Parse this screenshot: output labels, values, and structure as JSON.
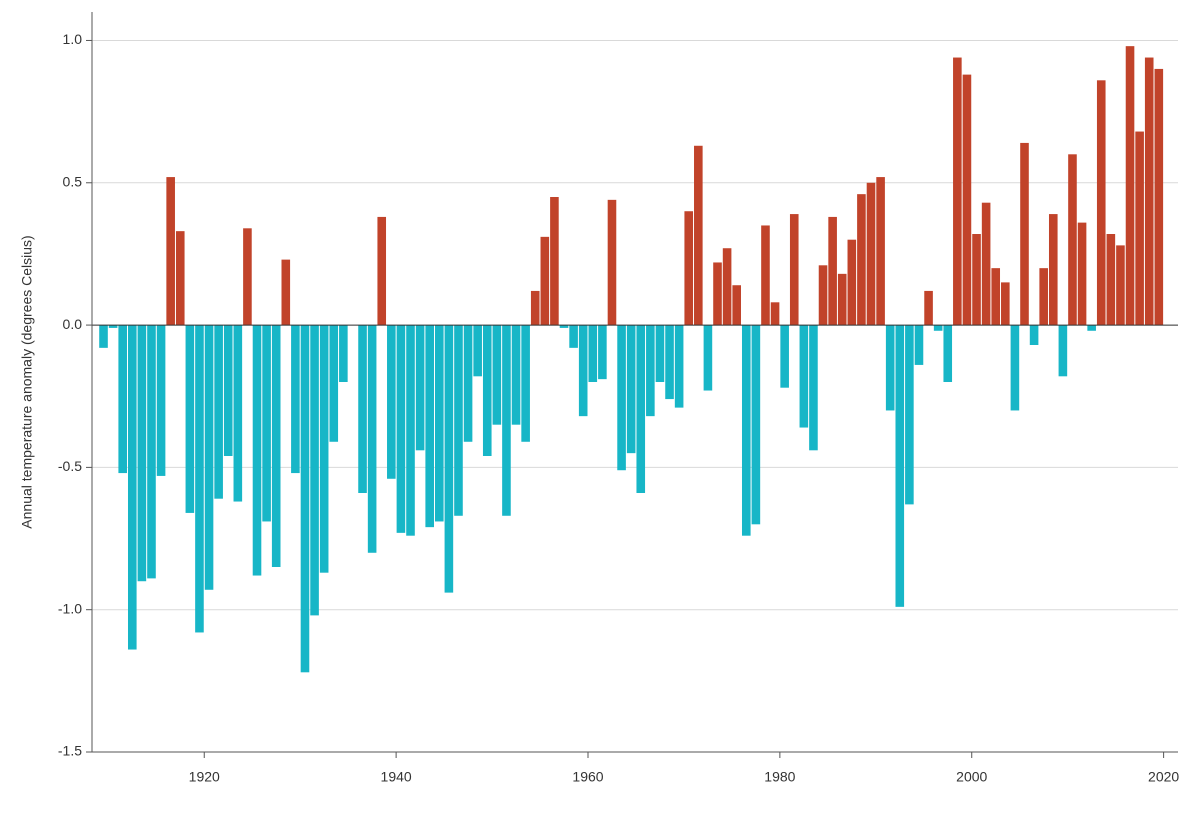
{
  "chart_data": {
    "type": "bar",
    "y_label": "Annual temperature anomaly (degrees Celsius)",
    "x": [
      1909,
      1910,
      1911,
      1912,
      1913,
      1914,
      1915,
      1916,
      1917,
      1918,
      1919,
      1920,
      1921,
      1922,
      1923,
      1924,
      1925,
      1926,
      1927,
      1928,
      1929,
      1930,
      1931,
      1932,
      1933,
      1934,
      1935,
      1936,
      1937,
      1938,
      1939,
      1940,
      1941,
      1942,
      1943,
      1944,
      1945,
      1946,
      1947,
      1948,
      1949,
      1950,
      1951,
      1952,
      1953,
      1954,
      1955,
      1956,
      1957,
      1958,
      1959,
      1960,
      1961,
      1962,
      1963,
      1964,
      1965,
      1966,
      1967,
      1968,
      1969,
      1970,
      1971,
      1972,
      1973,
      1974,
      1975,
      1976,
      1977,
      1978,
      1979,
      1980,
      1981,
      1982,
      1983,
      1984,
      1985,
      1986,
      1987,
      1988,
      1989,
      1990,
      1991,
      1992,
      1993,
      1994,
      1995,
      1996,
      1997,
      1998,
      1999,
      2000,
      2001,
      2002,
      2003,
      2004,
      2005,
      2006,
      2007,
      2008,
      2009,
      2010,
      2011,
      2012,
      2013,
      2014,
      2015,
      2016,
      2017,
      2018,
      2019
    ],
    "values": [
      -0.08,
      -0.01,
      -0.52,
      -1.14,
      -0.9,
      -0.89,
      -0.53,
      0.52,
      0.33,
      -0.66,
      -1.08,
      -0.93,
      -0.61,
      -0.46,
      -0.62,
      0.34,
      -0.88,
      -0.69,
      -0.85,
      0.23,
      -0.52,
      -1.22,
      -1.02,
      -0.87,
      -0.41,
      -0.2,
      0,
      -0.59,
      -0.8,
      0.38,
      -0.54,
      -0.73,
      -0.74,
      -0.44,
      -0.71,
      -0.69,
      -0.94,
      -0.67,
      -0.41,
      -0.18,
      -0.46,
      -0.35,
      -0.67,
      -0.35,
      -0.41,
      0.12,
      0.31,
      0.45,
      -0.01,
      -0.08,
      -0.32,
      -0.2,
      -0.19,
      0.44,
      -0.51,
      -0.45,
      -0.59,
      -0.32,
      -0.2,
      -0.26,
      -0.29,
      0.4,
      0.63,
      -0.23,
      0.22,
      0.27,
      0.14,
      -0.74,
      -0.7,
      0.35,
      0.08,
      -0.22,
      0.39,
      -0.36,
      -0.44,
      0.21,
      0.38,
      0.18,
      0.3,
      0.46,
      0.5,
      0.52,
      -0.3,
      -0.99,
      -0.63,
      -0.14,
      0.12,
      -0.02,
      -0.2,
      0.94,
      0.88,
      0.32,
      0.43,
      0.2,
      0.15,
      -0.3,
      0.64,
      -0.07,
      0.2,
      0.39,
      -0.18,
      0.6,
      0.36,
      -0.02,
      0.86,
      0.32,
      0.28,
      0.98,
      0.68,
      0.94,
      0.9
    ],
    "positive_color": "#c1432a",
    "negative_color": "#17b6c7",
    "xlim": [
      1908.3,
      2021.5
    ],
    "xticks": [
      1920,
      1940,
      1960,
      1980,
      2000,
      2020
    ],
    "ylim": [
      -1.5,
      1.1
    ],
    "yticks": [
      -1.5,
      {
        "value": -1,
        "label": "-1.0"
      },
      -0.5,
      {
        "value": 0,
        "label": "0.0"
      },
      0.5,
      {
        "value": 1,
        "label": "1.0"
      }
    ],
    "grid": true
  }
}
